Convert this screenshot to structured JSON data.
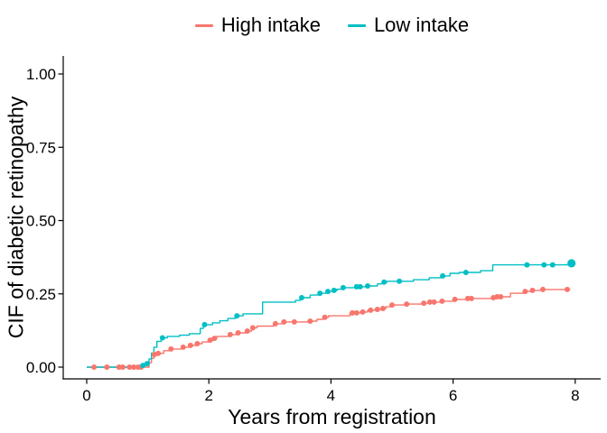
{
  "figure": {
    "background": "#ffffff"
  },
  "chart_data": {
    "type": "line",
    "subtype": "step-cumulative-incidence-curves",
    "title": "",
    "xlabel": "Years from registration",
    "ylabel": "CIF of diabetic retinopathy",
    "xlim": [
      0,
      8.4
    ],
    "ylim": [
      0,
      1.0
    ],
    "x_ticks": [
      0,
      2,
      4,
      6,
      8
    ],
    "y_ticks": [
      0.0,
      0.25,
      0.5,
      0.75,
      1.0
    ],
    "y_tick_labels": [
      "0.00",
      "0.25",
      "0.50",
      "0.75",
      "1.00"
    ],
    "grid": false,
    "legend_position": "top-center",
    "axis_color": "#000000",
    "series": [
      {
        "name": "High intake",
        "color": "#F8766D",
        "start": [
          0,
          0
        ],
        "end_x": 7.92,
        "steps": [
          [
            1.02,
            0.015
          ],
          [
            1.06,
            0.03
          ],
          [
            1.1,
            0.043
          ],
          [
            1.15,
            0.047
          ],
          [
            1.26,
            0.056
          ],
          [
            1.37,
            0.062
          ],
          [
            1.56,
            0.068
          ],
          [
            1.68,
            0.074
          ],
          [
            1.79,
            0.08
          ],
          [
            1.89,
            0.086
          ],
          [
            1.99,
            0.092
          ],
          [
            2.07,
            0.098
          ],
          [
            2.13,
            0.105
          ],
          [
            2.33,
            0.111
          ],
          [
            2.46,
            0.117
          ],
          [
            2.61,
            0.123
          ],
          [
            2.7,
            0.134
          ],
          [
            2.79,
            0.14
          ],
          [
            3.06,
            0.148
          ],
          [
            3.21,
            0.154
          ],
          [
            3.62,
            0.157
          ],
          [
            3.77,
            0.163
          ],
          [
            3.87,
            0.17
          ],
          [
            3.96,
            0.175
          ],
          [
            4.31,
            0.185
          ],
          [
            4.48,
            0.188
          ],
          [
            4.6,
            0.194
          ],
          [
            4.72,
            0.197
          ],
          [
            4.82,
            0.2
          ],
          [
            4.9,
            0.206
          ],
          [
            4.97,
            0.212
          ],
          [
            5.22,
            0.215
          ],
          [
            5.5,
            0.218
          ],
          [
            5.6,
            0.222
          ],
          [
            5.79,
            0.225
          ],
          [
            6.0,
            0.231
          ],
          [
            6.22,
            0.234
          ],
          [
            6.64,
            0.237
          ],
          [
            6.7,
            0.24
          ],
          [
            6.94,
            0.252
          ],
          [
            7.16,
            0.258
          ],
          [
            7.28,
            0.262
          ],
          [
            7.45,
            0.265
          ]
        ],
        "markers": [
          [
            0.12,
            0
          ],
          [
            0.33,
            0
          ],
          [
            0.53,
            0
          ],
          [
            0.59,
            0
          ],
          [
            0.7,
            0
          ],
          [
            0.77,
            0
          ],
          [
            0.84,
            0
          ],
          [
            0.89,
            0
          ],
          [
            1.11,
            0.043
          ],
          [
            1.17,
            0.047
          ],
          [
            1.38,
            0.062
          ],
          [
            1.58,
            0.068
          ],
          [
            1.7,
            0.074
          ],
          [
            1.81,
            0.08
          ],
          [
            2.02,
            0.092
          ],
          [
            2.09,
            0.098
          ],
          [
            2.35,
            0.111
          ],
          [
            2.48,
            0.117
          ],
          [
            2.63,
            0.123
          ],
          [
            2.72,
            0.134
          ],
          [
            3.09,
            0.148
          ],
          [
            3.23,
            0.154
          ],
          [
            3.4,
            0.154
          ],
          [
            3.66,
            0.157
          ],
          [
            3.9,
            0.17
          ],
          [
            4.35,
            0.185
          ],
          [
            4.42,
            0.185
          ],
          [
            4.52,
            0.188
          ],
          [
            4.65,
            0.194
          ],
          [
            4.76,
            0.197
          ],
          [
            4.85,
            0.2
          ],
          [
            5.0,
            0.212
          ],
          [
            5.24,
            0.215
          ],
          [
            5.52,
            0.218
          ],
          [
            5.62,
            0.222
          ],
          [
            5.69,
            0.222
          ],
          [
            5.82,
            0.225
          ],
          [
            6.03,
            0.231
          ],
          [
            6.24,
            0.234
          ],
          [
            6.3,
            0.234
          ],
          [
            6.66,
            0.237
          ],
          [
            6.72,
            0.24
          ],
          [
            6.78,
            0.24
          ],
          [
            7.18,
            0.258
          ],
          [
            7.3,
            0.262
          ],
          [
            7.47,
            0.265
          ],
          [
            7.87,
            0.265
          ]
        ]
      },
      {
        "name": "Low intake",
        "color": "#00BFC4",
        "start": [
          0,
          0
        ],
        "end_x": 7.96,
        "steps": [
          [
            0.87,
            0.006
          ],
          [
            0.95,
            0.012
          ],
          [
            1.02,
            0.028
          ],
          [
            1.06,
            0.048
          ],
          [
            1.1,
            0.068
          ],
          [
            1.15,
            0.088
          ],
          [
            1.22,
            0.1
          ],
          [
            1.32,
            0.105
          ],
          [
            1.52,
            0.109
          ],
          [
            1.68,
            0.114
          ],
          [
            1.86,
            0.132
          ],
          [
            1.91,
            0.145
          ],
          [
            2.06,
            0.151
          ],
          [
            2.18,
            0.158
          ],
          [
            2.31,
            0.166
          ],
          [
            2.43,
            0.175
          ],
          [
            2.56,
            0.182
          ],
          [
            2.88,
            0.222
          ],
          [
            3.42,
            0.228
          ],
          [
            3.5,
            0.237
          ],
          [
            3.66,
            0.246
          ],
          [
            3.8,
            0.252
          ],
          [
            3.92,
            0.258
          ],
          [
            4.02,
            0.262
          ],
          [
            4.1,
            0.266
          ],
          [
            4.17,
            0.271
          ],
          [
            4.4,
            0.274
          ],
          [
            4.57,
            0.277
          ],
          [
            4.76,
            0.284
          ],
          [
            4.84,
            0.29
          ],
          [
            4.92,
            0.293
          ],
          [
            5.35,
            0.298
          ],
          [
            5.61,
            0.305
          ],
          [
            5.8,
            0.311
          ],
          [
            5.95,
            0.32
          ],
          [
            6.1,
            0.323
          ],
          [
            6.45,
            0.329
          ],
          [
            6.65,
            0.349
          ],
          [
            7.9,
            0.354
          ]
        ],
        "markers": [
          [
            0.92,
            0.006
          ],
          [
            0.99,
            0.012
          ],
          [
            1.24,
            0.1
          ],
          [
            1.93,
            0.145
          ],
          [
            2.46,
            0.175
          ],
          [
            3.52,
            0.237
          ],
          [
            3.82,
            0.252
          ],
          [
            3.95,
            0.258
          ],
          [
            4.05,
            0.262
          ],
          [
            4.2,
            0.271
          ],
          [
            4.42,
            0.274
          ],
          [
            4.48,
            0.274
          ],
          [
            4.6,
            0.277
          ],
          [
            4.87,
            0.29
          ],
          [
            5.12,
            0.293
          ],
          [
            5.83,
            0.311
          ],
          [
            6.21,
            0.323
          ],
          [
            7.21,
            0.349
          ],
          [
            7.49,
            0.349
          ],
          [
            7.63,
            0.349
          ],
          [
            7.94,
            0.354,
            "lg"
          ]
        ]
      }
    ]
  }
}
